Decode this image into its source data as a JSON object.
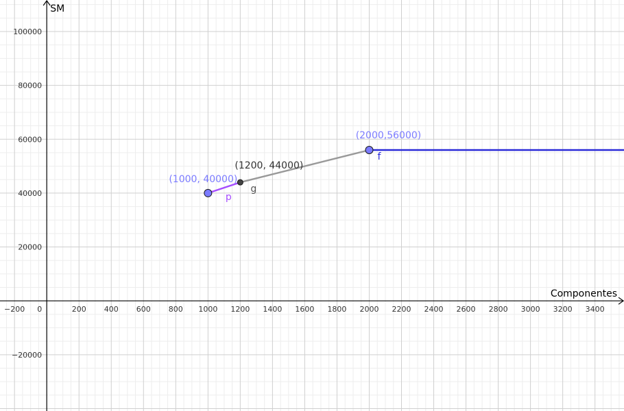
{
  "chart_data": {
    "type": "line",
    "xlabel": "Componentes",
    "ylabel": "SM",
    "xlim": [
      -290,
      3580
    ],
    "ylim": [
      -40900,
      111700
    ],
    "grid": true,
    "x_ticks": [
      -200,
      200,
      400,
      600,
      800,
      1000,
      1200,
      1400,
      1600,
      1800,
      2000,
      2200,
      2400,
      2600,
      2800,
      3000,
      3200,
      3400
    ],
    "x_tick_labels": [
      "−200",
      "200",
      "400",
      "600",
      "800",
      "1000",
      "1200",
      "1400",
      "1600",
      "1800",
      "2000",
      "2200",
      "2400",
      "2600",
      "2800",
      "3000",
      "3200",
      "3400"
    ],
    "y_ticks": [
      -20000,
      20000,
      40000,
      60000,
      80000,
      100000
    ],
    "y_tick_labels": [
      "−20000",
      "20000",
      "40000",
      "60000",
      "80000",
      "100000"
    ],
    "origin_label": "0",
    "segments": [
      {
        "name": "p",
        "color": "#a64dff",
        "points": [
          [
            1000,
            40000
          ],
          [
            1200,
            44000
          ]
        ]
      },
      {
        "name": "g",
        "color": "#999999",
        "points": [
          [
            1200,
            44000
          ],
          [
            2000,
            56000
          ]
        ]
      },
      {
        "name": "f",
        "color": "#2a2ad8",
        "points": [
          [
            2000,
            56000
          ],
          [
            3580,
            56000
          ]
        ]
      }
    ],
    "points": [
      {
        "x": 1000,
        "y": 40000,
        "label": "(1000, 40000)",
        "fill": "#7b7bff",
        "label_color": "#7b7bff"
      },
      {
        "x": 1200,
        "y": 44000,
        "label": "(1200, 44000)",
        "fill": "#444444",
        "label_color": "#333333"
      },
      {
        "x": 2000,
        "y": 56000,
        "label": "(2000,56000)",
        "fill": "#7b7bff",
        "label_color": "#7b7bff"
      }
    ]
  }
}
